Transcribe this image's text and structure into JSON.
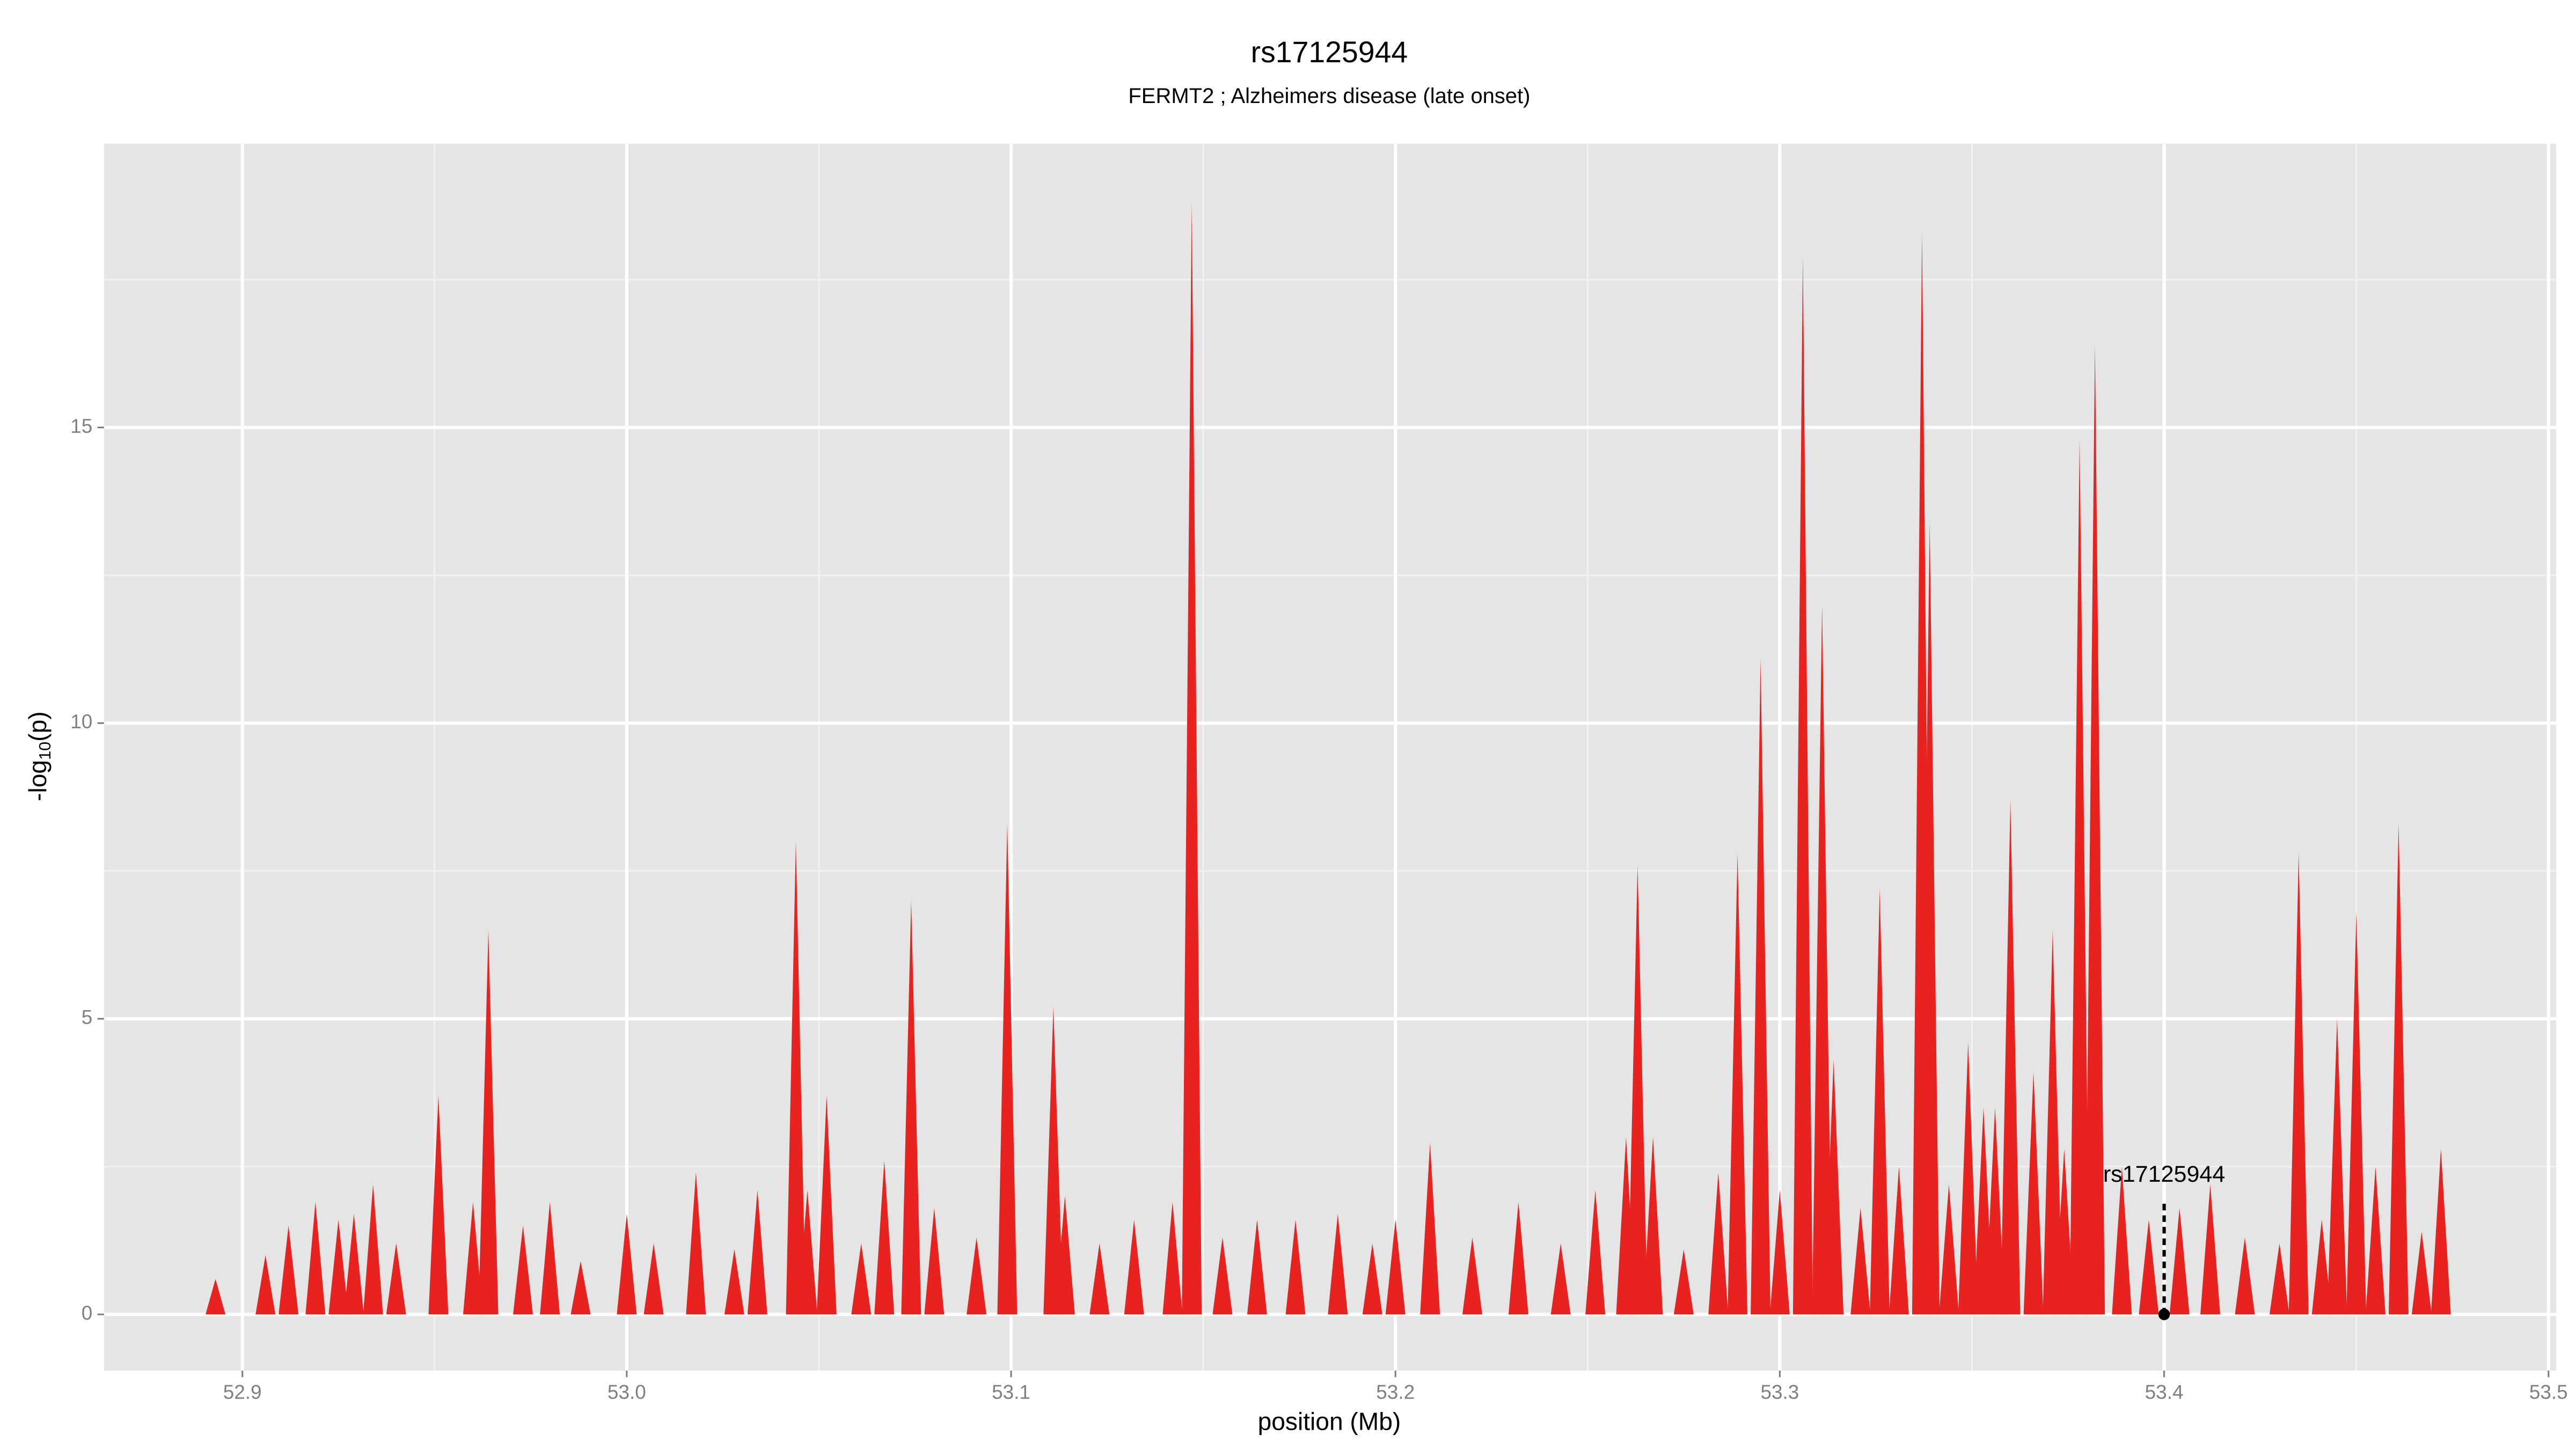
{
  "chart_data": {
    "type": "spike",
    "title": "rs17125944",
    "subtitle": "FERMT2 ; Alzheimers disease (late onset)",
    "x_label": "position (Mb)",
    "y_label_parts": [
      "-log",
      "10",
      "(p)"
    ],
    "color": "#e8221f",
    "grid": true,
    "xlim": [
      52.864,
      53.502
    ],
    "ylim": [
      -0.95,
      19.8
    ],
    "xticks": [
      52.9,
      {
        "value": 53,
        "label": "53.0"
      },
      53.1,
      53.2,
      53.3,
      53.4,
      53.5
    ],
    "yticks": [
      0,
      5,
      10,
      15
    ],
    "x": [
      52.893,
      52.906,
      52.912,
      52.919,
      52.925,
      52.929,
      52.934,
      52.94,
      52.951,
      52.96,
      52.964,
      52.973,
      52.98,
      52.988,
      53.0,
      53.007,
      53.018,
      53.028,
      53.034,
      53.044,
      53.047,
      53.052,
      53.061,
      53.067,
      53.074,
      53.08,
      53.091,
      53.099,
      53.111,
      53.114,
      53.123,
      53.132,
      53.142,
      53.147,
      53.155,
      53.164,
      53.174,
      53.185,
      53.194,
      53.2,
      53.209,
      53.22,
      53.232,
      53.243,
      53.252,
      53.26,
      53.263,
      53.267,
      53.275,
      53.284,
      53.289,
      53.295,
      53.3,
      53.306,
      53.311,
      53.314,
      53.321,
      53.326,
      53.331,
      53.337,
      53.339,
      53.344,
      53.349,
      53.353,
      53.356,
      53.36,
      53.366,
      53.371,
      53.374,
      53.378,
      53.382,
      53.389,
      53.396,
      53.404,
      53.412,
      53.421,
      53.43,
      53.435,
      53.441,
      53.445,
      53.45,
      53.455,
      53.461,
      53.467,
      53.472
    ],
    "values": [
      0.6,
      1.0,
      1.5,
      1.9,
      1.6,
      1.7,
      2.2,
      1.2,
      3.7,
      1.9,
      6.5,
      1.5,
      1.9,
      0.9,
      1.7,
      1.2,
      2.4,
      1.1,
      2.1,
      8.0,
      2.1,
      3.7,
      1.2,
      2.6,
      7.0,
      1.8,
      1.3,
      8.3,
      5.2,
      2.0,
      1.2,
      1.6,
      1.9,
      18.8,
      1.3,
      1.6,
      1.6,
      1.7,
      1.2,
      1.6,
      2.9,
      1.3,
      1.9,
      1.2,
      2.1,
      3.0,
      7.6,
      3.0,
      1.1,
      2.4,
      7.8,
      11.1,
      2.1,
      17.9,
      12.0,
      4.3,
      1.8,
      7.2,
      2.5,
      18.3,
      13.4,
      2.2,
      4.6,
      3.5,
      3.5,
      8.7,
      4.1,
      6.5,
      2.8,
      14.8,
      16.4,
      2.5,
      1.6,
      1.8,
      2.2,
      1.3,
      1.2,
      7.8,
      1.6,
      5.0,
      6.8,
      2.5,
      8.3,
      1.4,
      2.8
    ],
    "annotation": {
      "label": "rs17125944",
      "x": 53.4,
      "y": 1.9
    }
  }
}
